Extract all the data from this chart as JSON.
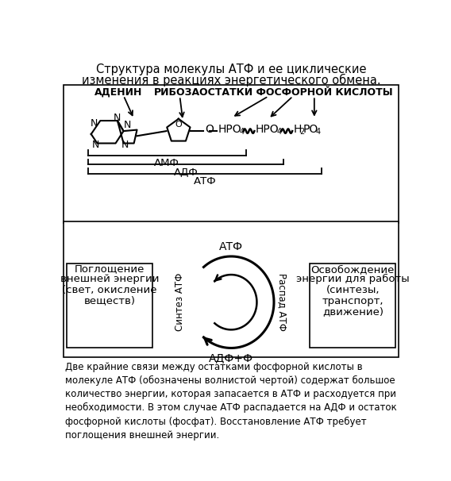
{
  "title_line1": "Структура молекулы АТФ и ее циклические",
  "title_line2": "изменения в реакциях энергетического обмена.",
  "adenin_label": "АДЕНИН",
  "riboza_label": "РИБОЗА",
  "ostatok_label": "ОСТАТКИ ФОСФОРНОЙ КИСЛОТЫ",
  "amf_label": "АМФ",
  "adf_label": "АДФ",
  "atf_label": "АТФ",
  "atf_top": "АТФ",
  "adf_phi": "АДФ+Ф",
  "sintez_label": "Синтез АТФ",
  "raspad_label": "Распад АТФ",
  "left_box_line1": "Поглощение",
  "left_box_line2": "внешней энергии",
  "left_box_line3": "(свет, окисление",
  "left_box_line4": "веществ)",
  "right_box_line1": "Освобождение",
  "right_box_line2": "энергии для работы",
  "right_box_line3": "(синтезы,",
  "right_box_line4": "транспорт,",
  "right_box_line5": "движение)",
  "footnote": "Две крайние связи между остатками фосфорной кислоты в\nмолекуле АТФ (обозначены волнистой чертой) содержат большое\nколичество энергии, которая запасается в АТФ и расходуется при\nнеобходимости. В этом случае АТФ распадается на АДФ и остаток\nфосфорной кислоты (фосфат). Восстановление АТФ требует\nпоглощения внешней энергии.",
  "bg_color": "#ffffff",
  "text_color": "#000000"
}
